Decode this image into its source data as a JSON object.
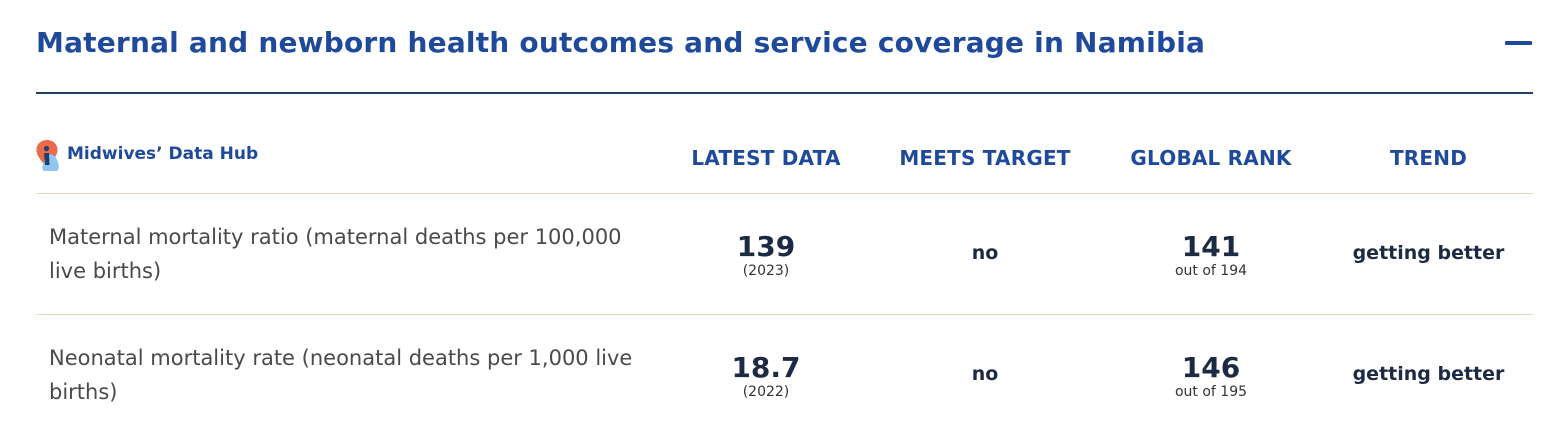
{
  "header": {
    "title": "Maternal and newborn health outcomes and service coverage in Namibia"
  },
  "table": {
    "brand": "Midwives’ Data Hub",
    "columns": [
      "LATEST DATA",
      "MEETS TARGET",
      "GLOBAL RANK",
      "TREND"
    ],
    "rows": [
      {
        "indicator": "Maternal mortality ratio (maternal deaths per 100,000 live births)",
        "latest_value": "139",
        "latest_year": "(2023)",
        "meets_target": "no",
        "rank": "141",
        "rank_of": "out of 194",
        "trend": "getting better"
      },
      {
        "indicator": "Neonatal mortality rate (neonatal deaths per 1,000 live births)",
        "latest_value": "18.7",
        "latest_year": "(2022)",
        "meets_target": "no",
        "rank": "146",
        "rank_of": "out of 195",
        "trend": "getting better"
      }
    ]
  },
  "icons": {
    "collapse": "minus-icon",
    "brand_logo": "midwife-logo-icon"
  },
  "colors": {
    "heading_blue": "#1f4a9c",
    "rule_dark": "#1f3f66",
    "row_divider": "#f3d2b6",
    "logo_orange": "#ec6a4c",
    "logo_light_blue": "#8ec5f2",
    "value_dark": "#1d2a44",
    "body_text": "#4a4a4a"
  }
}
